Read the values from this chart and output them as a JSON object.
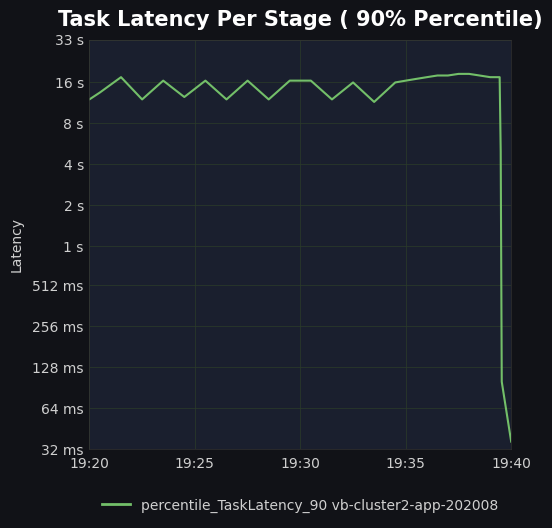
{
  "title": "Task Latency Per Stage ( 90% Percentile)",
  "background_color": "#111217",
  "plot_bg_color": "#1a1f2e",
  "grid_color": "#2a3a2a",
  "line_color": "#73bf69",
  "text_color": "#d0d0d0",
  "ylabel": "Latency",
  "legend_label": "percentile_TaskLatency_90 vb-cluster2-app-202008",
  "ytick_labels": [
    "32 ms",
    "64 ms",
    "128 ms",
    "256 ms",
    "512 ms",
    "1 s",
    "2 s",
    "4 s",
    "8 s",
    "16 s",
    "33 s"
  ],
  "ytick_values": [
    0.032,
    0.064,
    0.128,
    0.256,
    0.512,
    1.0,
    2.0,
    4.0,
    8.0,
    16.0,
    33.0
  ],
  "xtick_labels": [
    "19:20",
    "19:25",
    "19:30",
    "19:35",
    "19:40"
  ],
  "xtick_values": [
    0,
    5,
    10,
    15,
    20
  ],
  "x_data": [
    0,
    0.5,
    1.5,
    2.5,
    3.5,
    4.5,
    5.5,
    6.5,
    7.5,
    8.5,
    9.5,
    10.5,
    11.5,
    12.5,
    13.5,
    14.5,
    15.0,
    15.5,
    16.0,
    16.5,
    17.0,
    17.5,
    18.0,
    18.5,
    19.0,
    19.45,
    19.5,
    19.55,
    20.0
  ],
  "y_data": [
    12.0,
    13.5,
    17.5,
    12.0,
    16.5,
    12.5,
    16.5,
    12.0,
    16.5,
    12.0,
    16.5,
    16.5,
    12.0,
    16.0,
    11.5,
    16.0,
    16.5,
    17.0,
    17.5,
    18.0,
    18.0,
    18.5,
    18.5,
    18.0,
    17.5,
    17.5,
    5.0,
    0.1,
    0.036
  ],
  "xlim": [
    0,
    20
  ],
  "ylim_log": [
    0.032,
    33.0
  ],
  "title_fontsize": 15,
  "axis_fontsize": 10,
  "tick_fontsize": 10,
  "legend_fontsize": 10
}
